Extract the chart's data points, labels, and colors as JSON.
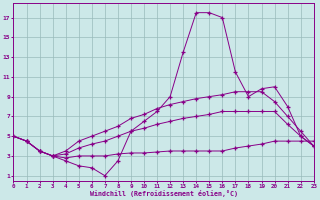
{
  "xlabel": "Windchill (Refroidissement éolien,°C)",
  "bg_color": "#cce8e8",
  "grid_color": "#99bbbb",
  "line_color": "#880088",
  "x_ticks": [
    0,
    1,
    2,
    3,
    4,
    5,
    6,
    7,
    8,
    9,
    10,
    11,
    12,
    13,
    14,
    15,
    16,
    17,
    18,
    19,
    20,
    21,
    22,
    23
  ],
  "y_ticks": [
    1,
    3,
    5,
    7,
    9,
    11,
    13,
    15,
    17
  ],
  "xlim": [
    0,
    23
  ],
  "ylim": [
    0.5,
    18.5
  ],
  "lines": [
    {
      "x": [
        0,
        1,
        2,
        3,
        4,
        5,
        6,
        7,
        8,
        9,
        10,
        11,
        12,
        13,
        14,
        15,
        16,
        17,
        18,
        19,
        20,
        21,
        22,
        23
      ],
      "y": [
        5,
        4.5,
        3.5,
        3.0,
        2.5,
        2.0,
        1.8,
        1.0,
        2.5,
        5.5,
        6.5,
        7.5,
        9.0,
        13.5,
        17.5,
        17.5,
        17.0,
        11.5,
        9.0,
        9.8,
        10.0,
        8.0,
        5.0,
        4.0
      ]
    },
    {
      "x": [
        0,
        1,
        2,
        3,
        4,
        5,
        6,
        7,
        8,
        9,
        10,
        11,
        12,
        13,
        14,
        15,
        16,
        17,
        18,
        19,
        20,
        21,
        22,
        23
      ],
      "y": [
        5,
        4.5,
        3.5,
        3.0,
        3.5,
        4.5,
        5.0,
        5.5,
        6.0,
        6.8,
        7.2,
        7.8,
        8.2,
        8.5,
        8.8,
        9.0,
        9.2,
        9.5,
        9.5,
        9.5,
        8.5,
        7.0,
        5.5,
        4.0
      ]
    },
    {
      "x": [
        0,
        1,
        2,
        3,
        4,
        5,
        6,
        7,
        8,
        9,
        10,
        11,
        12,
        13,
        14,
        15,
        16,
        17,
        18,
        19,
        20,
        21,
        22,
        23
      ],
      "y": [
        5,
        4.5,
        3.5,
        3.0,
        3.2,
        3.8,
        4.2,
        4.5,
        5.0,
        5.5,
        5.8,
        6.2,
        6.5,
        6.8,
        7.0,
        7.2,
        7.5,
        7.5,
        7.5,
        7.5,
        7.5,
        6.2,
        5.0,
        4.0
      ]
    },
    {
      "x": [
        0,
        1,
        2,
        3,
        4,
        5,
        6,
        7,
        8,
        9,
        10,
        11,
        12,
        13,
        14,
        15,
        16,
        17,
        18,
        19,
        20,
        21,
        22,
        23
      ],
      "y": [
        5,
        4.5,
        3.5,
        3.0,
        2.8,
        3.0,
        3.0,
        3.0,
        3.2,
        3.3,
        3.3,
        3.4,
        3.5,
        3.5,
        3.5,
        3.5,
        3.5,
        3.8,
        4.0,
        4.2,
        4.5,
        4.5,
        4.5,
        4.5
      ]
    }
  ]
}
